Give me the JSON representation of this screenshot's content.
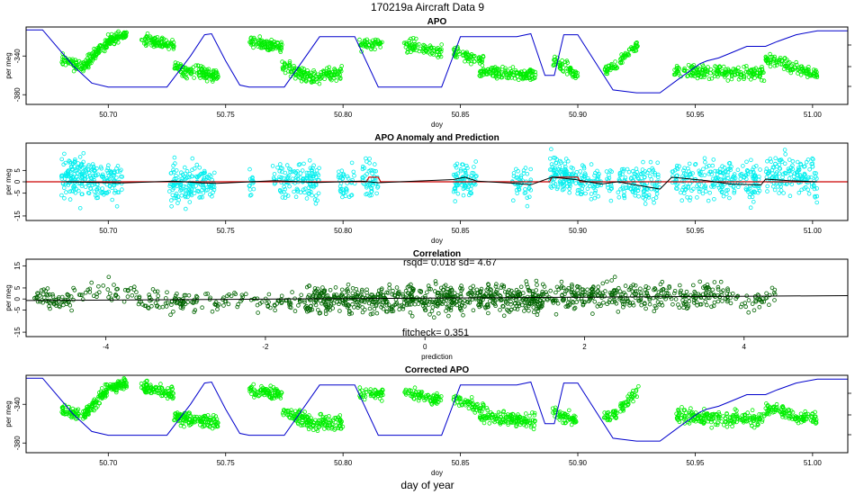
{
  "page_title": "170219a   Aircraft Data 9",
  "bottom_xlabel": "day of year",
  "colors": {
    "green": "#00ee00",
    "cyan": "#00eeee",
    "darkgreen": "#006400",
    "blue": "#0000cc",
    "red": "#cc0000",
    "black": "#000000"
  },
  "chart_data": [
    {
      "id": "apo",
      "type": "scatter",
      "title": "APO",
      "xlabel": "doy",
      "ylabel": "per meg",
      "xlim": [
        50.665,
        51.015
      ],
      "ylim": [
        -390,
        -310
      ],
      "xticks": [
        50.7,
        50.75,
        50.8,
        50.85,
        50.9,
        50.95,
        51.0
      ],
      "xtick_labels": [
        "50.70",
        "50.75",
        "50.80",
        "50.85",
        "50.90",
        "50.95",
        "51.00"
      ],
      "yticks": [
        -340,
        -380
      ],
      "ytick_labels": [
        "-340",
        "-380"
      ],
      "series": [
        {
          "color": "green",
          "kind": "points",
          "segments": [
            {
              "x0": 50.68,
              "x1": 50.69,
              "y0": -344,
              "y1": -352,
              "n": 60,
              "spread": 6
            },
            {
              "x0": 50.69,
              "x1": 50.7,
              "y0": -350,
              "y1": -324,
              "n": 90,
              "spread": 6
            },
            {
              "x0": 50.7,
              "x1": 50.708,
              "y0": -324,
              "y1": -318,
              "n": 70,
              "spread": 5
            },
            {
              "x0": 50.714,
              "x1": 50.728,
              "y0": -322,
              "y1": -330,
              "n": 90,
              "spread": 6
            },
            {
              "x0": 50.728,
              "x1": 50.747,
              "y0": -352,
              "y1": -362,
              "n": 130,
              "spread": 7
            },
            {
              "x0": 50.76,
              "x1": 50.774,
              "y0": -325,
              "y1": -330,
              "n": 90,
              "spread": 6
            },
            {
              "x0": 50.774,
              "x1": 50.79,
              "y0": -350,
              "y1": -365,
              "n": 100,
              "spread": 7
            },
            {
              "x0": 50.79,
              "x1": 50.8,
              "y0": -360,
              "y1": -358,
              "n": 60,
              "spread": 8
            },
            {
              "x0": 50.807,
              "x1": 50.817,
              "y0": -330,
              "y1": -328,
              "n": 50,
              "spread": 6
            },
            {
              "x0": 50.826,
              "x1": 50.842,
              "y0": -328,
              "y1": -336,
              "n": 80,
              "spread": 6
            },
            {
              "x0": 50.847,
              "x1": 50.86,
              "y0": -335,
              "y1": -345,
              "n": 60,
              "spread": 6
            },
            {
              "x0": 50.858,
              "x1": 50.882,
              "y0": -355,
              "y1": -360,
              "n": 140,
              "spread": 7
            },
            {
              "x0": 50.889,
              "x1": 50.9,
              "y0": -345,
              "y1": -360,
              "n": 60,
              "spread": 7
            },
            {
              "x0": 50.911,
              "x1": 50.917,
              "y0": -355,
              "y1": -350,
              "n": 30,
              "spread": 6
            },
            {
              "x0": 50.918,
              "x1": 50.926,
              "y0": -345,
              "y1": -327,
              "n": 40,
              "spread": 6
            },
            {
              "x0": 50.941,
              "x1": 50.98,
              "y0": -355,
              "y1": -358,
              "n": 200,
              "spread": 7
            },
            {
              "x0": 50.98,
              "x1": 50.99,
              "y0": -344,
              "y1": -348,
              "n": 50,
              "spread": 6
            },
            {
              "x0": 50.99,
              "x1": 51.002,
              "y0": -352,
              "y1": -358,
              "n": 60,
              "spread": 6
            }
          ]
        },
        {
          "color": "blue",
          "kind": "line",
          "x": [
            50.665,
            50.672,
            50.685,
            50.693,
            50.7,
            50.725,
            50.735,
            50.741,
            50.744,
            50.75,
            50.756,
            50.76,
            50.763,
            50.775,
            50.79,
            50.805,
            50.815,
            50.842,
            50.85,
            50.874,
            50.88,
            50.886,
            50.89,
            50.894,
            50.9,
            50.915,
            50.925,
            50.935,
            50.945,
            50.952,
            50.955,
            50.96,
            50.964,
            50.972,
            50.98,
            50.985,
            50.993,
            51.002,
            51.015
          ],
          "y": [
            -313,
            -313,
            -350,
            -368,
            -372,
            -372,
            -340,
            -318,
            -317,
            -345,
            -370,
            -372,
            -372,
            -372,
            -320,
            -320,
            -372,
            -372,
            -320,
            -320,
            -317,
            -360,
            -360,
            -318,
            -318,
            -375,
            -378,
            -378,
            -360,
            -348,
            -345,
            -342,
            -338,
            -330,
            -330,
            -325,
            -318,
            -314,
            -314
          ]
        }
      ]
    },
    {
      "id": "anomaly",
      "type": "scatter",
      "title": "APO Anomaly and Prediction",
      "xlabel": "doy",
      "ylabel": "per meg",
      "xlim": [
        50.665,
        51.015
      ],
      "ylim": [
        -17,
        17
      ],
      "xticks": [
        50.7,
        50.75,
        50.8,
        50.85,
        50.9,
        50.95,
        51.0
      ],
      "xtick_labels": [
        "50.70",
        "50.75",
        "50.80",
        "50.85",
        "50.90",
        "50.95",
        "51.00"
      ],
      "yticks": [
        5,
        0,
        -5,
        -15
      ],
      "ytick_labels": [
        "5",
        "0",
        "-5",
        "-15"
      ],
      "series": [
        {
          "color": "cyan",
          "kind": "points",
          "segments": [
            {
              "x0": 50.68,
              "x1": 50.69,
              "y0": 2,
              "y1": 2,
              "n": 110,
              "spread": 9
            },
            {
              "x0": 50.69,
              "x1": 50.706,
              "y0": 0,
              "y1": 0,
              "n": 120,
              "spread": 8
            },
            {
              "x0": 50.726,
              "x1": 50.746,
              "y0": -1,
              "y1": 0,
              "n": 160,
              "spread": 8
            },
            {
              "x0": 50.76,
              "x1": 50.762,
              "y0": 0,
              "y1": 0,
              "n": 15,
              "spread": 6
            },
            {
              "x0": 50.77,
              "x1": 50.79,
              "y0": 0,
              "y1": 1,
              "n": 130,
              "spread": 8
            },
            {
              "x0": 50.798,
              "x1": 50.805,
              "y0": 1,
              "y1": 0,
              "n": 40,
              "spread": 7
            },
            {
              "x0": 50.808,
              "x1": 50.815,
              "y0": 2,
              "y1": 0,
              "n": 50,
              "spread": 8
            },
            {
              "x0": 50.847,
              "x1": 50.857,
              "y0": 0,
              "y1": 1,
              "n": 80,
              "spread": 8
            },
            {
              "x0": 50.872,
              "x1": 50.88,
              "y0": 0,
              "y1": -1,
              "n": 45,
              "spread": 7
            },
            {
              "x0": 50.888,
              "x1": 50.898,
              "y0": 4,
              "y1": 2,
              "n": 100,
              "spread": 8
            },
            {
              "x0": 50.899,
              "x1": 50.91,
              "y0": 0,
              "y1": -1,
              "n": 70,
              "spread": 7
            },
            {
              "x0": 50.912,
              "x1": 50.915,
              "y0": 0,
              "y1": 0,
              "n": 15,
              "spread": 6
            },
            {
              "x0": 50.917,
              "x1": 50.935,
              "y0": 0,
              "y1": -1,
              "n": 120,
              "spread": 8
            },
            {
              "x0": 50.94,
              "x1": 50.978,
              "y0": 1,
              "y1": 0,
              "n": 230,
              "spread": 8
            },
            {
              "x0": 50.98,
              "x1": 51.002,
              "y0": 4,
              "y1": 2,
              "n": 150,
              "spread": 8
            }
          ]
        },
        {
          "color": "red",
          "kind": "line",
          "x": [
            50.665,
            50.806,
            50.81,
            50.811,
            50.815,
            50.816,
            50.888,
            50.889,
            50.9,
            50.901,
            51.015
          ],
          "y": [
            0,
            0,
            0,
            2,
            2,
            0,
            0,
            2,
            2,
            0,
            0
          ]
        },
        {
          "color": "black",
          "kind": "line",
          "x": [
            50.682,
            50.695,
            50.706,
            50.728,
            50.74,
            50.746,
            50.771,
            50.789,
            50.808,
            50.815,
            50.847,
            50.852,
            50.857,
            50.872,
            50.88,
            50.889,
            50.899,
            50.91,
            50.917,
            50.935,
            50.94,
            50.955,
            50.965,
            50.978,
            50.98,
            50.99,
            51.002
          ],
          "y": [
            0,
            -0.3,
            -0.5,
            0.3,
            -0.5,
            -0.7,
            0.5,
            -0.3,
            0.3,
            -0.4,
            1,
            2,
            0.3,
            -0.6,
            -1.3,
            2,
            1,
            -1,
            0,
            -3.2,
            2,
            0.5,
            -1,
            -1.4,
            1.2,
            0.5,
            0
          ]
        }
      ]
    },
    {
      "id": "correlation",
      "type": "scatter",
      "title": "Correlation",
      "xlabel": "prediction",
      "ylabel": "per meg",
      "xlim": [
        -5,
        5.3
      ],
      "ylim": [
        -17,
        18
      ],
      "xticks": [
        -4,
        -2,
        0,
        2,
        4
      ],
      "xtick_labels": [
        "-4",
        "-2",
        "0",
        "2",
        "4"
      ],
      "yticks": [
        15,
        5,
        0,
        -5,
        -15
      ],
      "ytick_labels": [
        "15",
        "5",
        "0",
        "-5",
        "-15"
      ],
      "rsqd_text": "rsqd= 0.018 sd= 4.67",
      "fitcheck_text": "fitcheck= 0.351",
      "fit_line": {
        "x": [
          -5,
          5.3
        ],
        "y": [
          -0.7,
          1.5
        ]
      },
      "clusters": [
        {
          "cx0": -4.9,
          "cx1": -4.4,
          "cy": 0,
          "sy": 4,
          "n": 60
        },
        {
          "cx0": -4.4,
          "cx1": -3.6,
          "cy": 3,
          "sy": 4,
          "n": 40
        },
        {
          "cx0": -3.6,
          "cx1": -1.2,
          "cy": -1,
          "sy": 4,
          "n": 170
        },
        {
          "cx0": -1.5,
          "cx1": 1.5,
          "cy": 0,
          "sy": 5,
          "n": 650
        },
        {
          "cx0": 1.5,
          "cx1": 3.8,
          "cy": 1.5,
          "sy": 5,
          "n": 330
        },
        {
          "cx0": 3.8,
          "cx1": 4.4,
          "cy": 0,
          "sy": 4,
          "n": 40
        }
      ]
    },
    {
      "id": "corrected",
      "type": "scatter",
      "title": "Corrected APO",
      "xlabel": "doy",
      "ylabel": "per meg",
      "xlim": [
        50.665,
        51.015
      ],
      "ylim": [
        -390,
        -310
      ],
      "xticks": [
        50.7,
        50.75,
        50.8,
        50.85,
        50.9,
        50.95,
        51.0
      ],
      "xtick_labels": [
        "50.70",
        "50.75",
        "50.80",
        "50.85",
        "50.90",
        "50.95",
        "51.00"
      ],
      "yticks": [
        -340,
        -380
      ],
      "ytick_labels": [
        "-340",
        "-380"
      ],
      "series": [
        {
          "color": "green",
          "kind": "points",
          "segments": [
            {
              "x0": 50.68,
              "x1": 50.69,
              "y0": -345,
              "y1": -352,
              "n": 60,
              "spread": 6
            },
            {
              "x0": 50.69,
              "x1": 50.7,
              "y0": -350,
              "y1": -324,
              "n": 90,
              "spread": 6
            },
            {
              "x0": 50.7,
              "x1": 50.708,
              "y0": -324,
              "y1": -318,
              "n": 70,
              "spread": 5
            },
            {
              "x0": 50.714,
              "x1": 50.728,
              "y0": -322,
              "y1": -330,
              "n": 90,
              "spread": 6
            },
            {
              "x0": 50.728,
              "x1": 50.747,
              "y0": -352,
              "y1": -360,
              "n": 130,
              "spread": 7
            },
            {
              "x0": 50.76,
              "x1": 50.774,
              "y0": -325,
              "y1": -330,
              "n": 90,
              "spread": 6
            },
            {
              "x0": 50.774,
              "x1": 50.79,
              "y0": -348,
              "y1": -362,
              "n": 100,
              "spread": 7
            },
            {
              "x0": 50.79,
              "x1": 50.8,
              "y0": -358,
              "y1": -360,
              "n": 60,
              "spread": 8
            },
            {
              "x0": 50.807,
              "x1": 50.817,
              "y0": -330,
              "y1": -328,
              "n": 50,
              "spread": 6
            },
            {
              "x0": 50.826,
              "x1": 50.842,
              "y0": -328,
              "y1": -336,
              "n": 80,
              "spread": 6
            },
            {
              "x0": 50.847,
              "x1": 50.86,
              "y0": -335,
              "y1": -345,
              "n": 60,
              "spread": 6
            },
            {
              "x0": 50.858,
              "x1": 50.882,
              "y0": -352,
              "y1": -358,
              "n": 140,
              "spread": 7
            },
            {
              "x0": 50.889,
              "x1": 50.9,
              "y0": -348,
              "y1": -358,
              "n": 60,
              "spread": 7
            },
            {
              "x0": 50.911,
              "x1": 50.917,
              "y0": -352,
              "y1": -350,
              "n": 30,
              "spread": 6
            },
            {
              "x0": 50.918,
              "x1": 50.926,
              "y0": -345,
              "y1": -325,
              "n": 40,
              "spread": 6
            },
            {
              "x0": 50.941,
              "x1": 50.98,
              "y0": -352,
              "y1": -356,
              "n": 200,
              "spread": 7
            },
            {
              "x0": 50.98,
              "x1": 50.99,
              "y0": -344,
              "y1": -348,
              "n": 50,
              "spread": 6
            },
            {
              "x0": 50.99,
              "x1": 51.002,
              "y0": -352,
              "y1": -356,
              "n": 60,
              "spread": 6
            }
          ]
        },
        {
          "color": "blue",
          "kind": "line",
          "x": [
            50.665,
            50.672,
            50.685,
            50.693,
            50.7,
            50.725,
            50.735,
            50.741,
            50.744,
            50.75,
            50.756,
            50.76,
            50.763,
            50.775,
            50.79,
            50.805,
            50.815,
            50.842,
            50.85,
            50.874,
            50.88,
            50.886,
            50.89,
            50.894,
            50.9,
            50.915,
            50.925,
            50.935,
            50.945,
            50.952,
            50.955,
            50.96,
            50.964,
            50.972,
            50.98,
            50.985,
            50.993,
            51.002,
            51.015
          ],
          "y": [
            -313,
            -313,
            -350,
            -368,
            -372,
            -372,
            -340,
            -318,
            -317,
            -345,
            -370,
            -372,
            -372,
            -372,
            -320,
            -320,
            -372,
            -372,
            -320,
            -320,
            -317,
            -360,
            -360,
            -318,
            -318,
            -375,
            -378,
            -378,
            -360,
            -348,
            -345,
            -342,
            -338,
            -330,
            -330,
            -325,
            -318,
            -314,
            -314
          ]
        }
      ]
    }
  ]
}
